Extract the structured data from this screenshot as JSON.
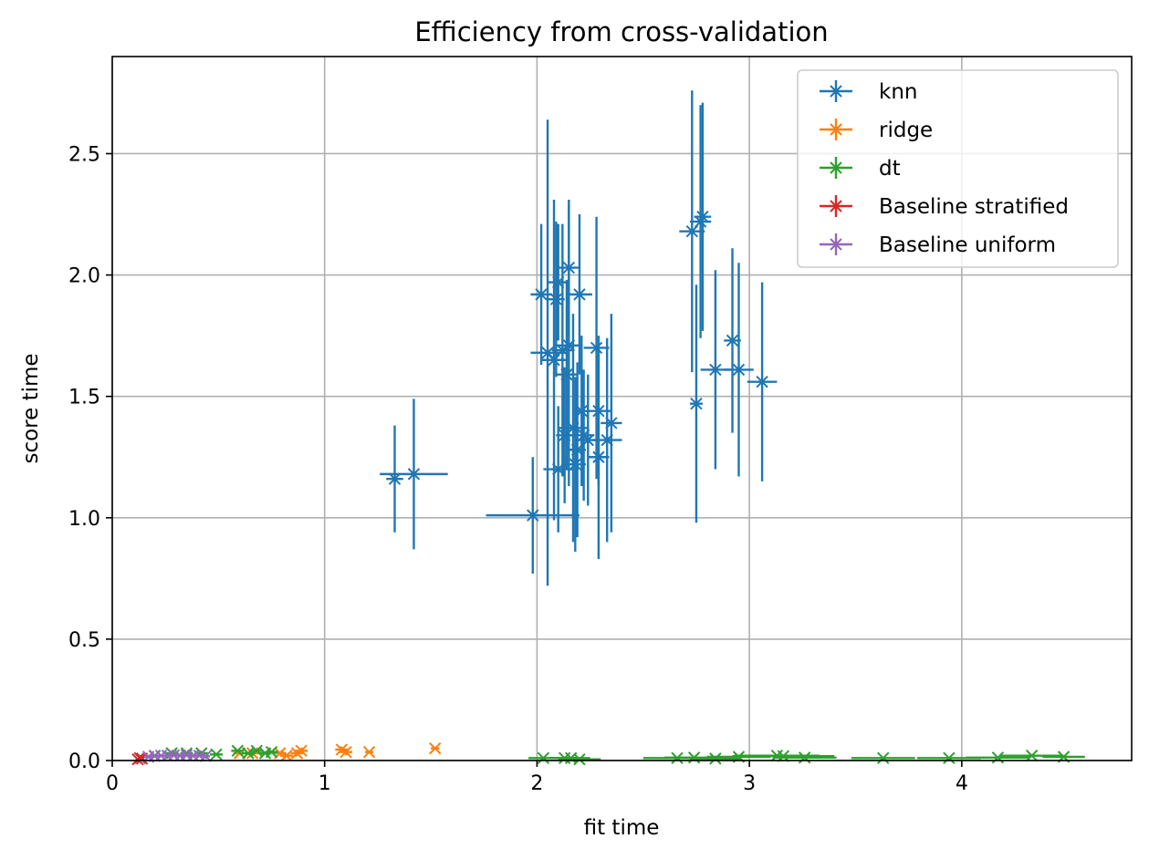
{
  "chart_data": {
    "type": "scatter",
    "title": "Efficiency from cross-validation",
    "xlabel": "fit time",
    "ylabel": "score time",
    "xlim": [
      0,
      4.8
    ],
    "ylim": [
      0,
      2.9
    ],
    "xticks": [
      0,
      1,
      2,
      3,
      4
    ],
    "yticks": [
      0.0,
      0.5,
      1.0,
      1.5,
      2.0,
      2.5
    ],
    "xtick_labels": [
      "0",
      "1",
      "2",
      "3",
      "4"
    ],
    "ytick_labels": [
      "0.0",
      "0.5",
      "1.0",
      "1.5",
      "2.0",
      "2.5"
    ],
    "grid": true,
    "legend_position": "top-right",
    "series": [
      {
        "name": "knn",
        "color": "#1f77b4",
        "marker": "x",
        "points": [
          {
            "x": 1.33,
            "y": 1.16,
            "xerr": 0.04,
            "yerr": 0.22
          },
          {
            "x": 1.42,
            "y": 1.18,
            "xerr": 0.16,
            "yerr": 0.31
          },
          {
            "x": 1.98,
            "y": 1.01,
            "xerr": 0.22,
            "yerr": 0.24
          },
          {
            "x": 2.02,
            "y": 1.92,
            "xerr": 0.05,
            "yerr": 0.29
          },
          {
            "x": 2.05,
            "y": 1.68,
            "xerr": 0.08,
            "yerr": 0.96
          },
          {
            "x": 2.08,
            "y": 1.65,
            "xerr": 0.06,
            "yerr": 0.66
          },
          {
            "x": 2.09,
            "y": 1.9,
            "xerr": 0.04,
            "yerr": 0.32
          },
          {
            "x": 2.1,
            "y": 1.97,
            "xerr": 0.05,
            "yerr": 0.24
          },
          {
            "x": 2.1,
            "y": 1.2,
            "xerr": 0.07,
            "yerr": 0.26
          },
          {
            "x": 2.12,
            "y": 1.69,
            "xerr": 0.05,
            "yerr": 0.52
          },
          {
            "x": 2.13,
            "y": 1.34,
            "xerr": 0.04,
            "yerr": 0.28
          },
          {
            "x": 2.14,
            "y": 1.59,
            "xerr": 0.05,
            "yerr": 0.39
          },
          {
            "x": 2.15,
            "y": 2.03,
            "xerr": 0.05,
            "yerr": 0.28
          },
          {
            "x": 2.15,
            "y": 1.71,
            "xerr": 0.06,
            "yerr": 0.58
          },
          {
            "x": 2.17,
            "y": 1.37,
            "xerr": 0.07,
            "yerr": 0.47
          },
          {
            "x": 2.18,
            "y": 1.22,
            "xerr": 0.05,
            "yerr": 0.36
          },
          {
            "x": 2.19,
            "y": 1.28,
            "xerr": 0.04,
            "yerr": 0.36
          },
          {
            "x": 2.2,
            "y": 1.92,
            "xerr": 0.06,
            "yerr": 0.33
          },
          {
            "x": 2.21,
            "y": 1.44,
            "xerr": 0.04,
            "yerr": 0.31
          },
          {
            "x": 2.22,
            "y": 1.34,
            "xerr": 0.05,
            "yerr": 0.27
          },
          {
            "x": 2.24,
            "y": 1.32,
            "xerr": 0.05,
            "yerr": 0.27
          },
          {
            "x": 2.28,
            "y": 1.7,
            "xerr": 0.06,
            "yerr": 0.54
          },
          {
            "x": 2.29,
            "y": 1.25,
            "xerr": 0.05,
            "yerr": 0.42
          },
          {
            "x": 2.29,
            "y": 1.44,
            "xerr": 0.06,
            "yerr": 0.31
          },
          {
            "x": 2.33,
            "y": 1.32,
            "xerr": 0.07,
            "yerr": 0.42
          },
          {
            "x": 2.35,
            "y": 1.39,
            "xerr": 0.05,
            "yerr": 0.45
          },
          {
            "x": 2.73,
            "y": 2.18,
            "xerr": 0.06,
            "yerr": 0.58
          },
          {
            "x": 2.75,
            "y": 1.47,
            "xerr": 0.03,
            "yerr": 0.49
          },
          {
            "x": 2.77,
            "y": 2.22,
            "xerr": 0.05,
            "yerr": 0.48
          },
          {
            "x": 2.78,
            "y": 2.24,
            "xerr": 0.04,
            "yerr": 0.47
          },
          {
            "x": 2.84,
            "y": 1.61,
            "xerr": 0.07,
            "yerr": 0.41
          },
          {
            "x": 2.92,
            "y": 1.73,
            "xerr": 0.04,
            "yerr": 0.38
          },
          {
            "x": 2.95,
            "y": 1.61,
            "xerr": 0.07,
            "yerr": 0.44
          },
          {
            "x": 3.06,
            "y": 1.56,
            "xerr": 0.07,
            "yerr": 0.41
          }
        ]
      },
      {
        "name": "ridge",
        "color": "#ff7f0e",
        "marker": "x",
        "points": [
          {
            "x": 0.6,
            "y": 0.03,
            "xerr": 0.03,
            "yerr": 0.005
          },
          {
            "x": 0.66,
            "y": 0.03,
            "xerr": 0.03,
            "yerr": 0.005
          },
          {
            "x": 0.79,
            "y": 0.03,
            "xerr": 0.03,
            "yerr": 0.005
          },
          {
            "x": 0.82,
            "y": 0.02,
            "xerr": 0.03,
            "yerr": 0.005
          },
          {
            "x": 0.87,
            "y": 0.03,
            "xerr": 0.03,
            "yerr": 0.005
          },
          {
            "x": 0.89,
            "y": 0.04,
            "xerr": 0.03,
            "yerr": 0.005
          },
          {
            "x": 1.08,
            "y": 0.045,
            "xerr": 0.03,
            "yerr": 0.006
          },
          {
            "x": 1.1,
            "y": 0.035,
            "xerr": 0.03,
            "yerr": 0.006
          },
          {
            "x": 1.21,
            "y": 0.035,
            "xerr": 0.02,
            "yerr": 0.005
          },
          {
            "x": 1.52,
            "y": 0.05,
            "xerr": 0.02,
            "yerr": 0.006
          }
        ]
      },
      {
        "name": "dt",
        "color": "#2ca02c",
        "marker": "x",
        "points": [
          {
            "x": 0.2,
            "y": 0.02,
            "xerr": 0.03,
            "yerr": 0.004
          },
          {
            "x": 0.28,
            "y": 0.03,
            "xerr": 0.03,
            "yerr": 0.004
          },
          {
            "x": 0.35,
            "y": 0.03,
            "xerr": 0.03,
            "yerr": 0.004
          },
          {
            "x": 0.42,
            "y": 0.03,
            "xerr": 0.03,
            "yerr": 0.004
          },
          {
            "x": 0.49,
            "y": 0.025,
            "xerr": 0.03,
            "yerr": 0.004
          },
          {
            "x": 0.59,
            "y": 0.04,
            "xerr": 0.03,
            "yerr": 0.006
          },
          {
            "x": 0.64,
            "y": 0.03,
            "xerr": 0.03,
            "yerr": 0.005
          },
          {
            "x": 0.68,
            "y": 0.04,
            "xerr": 0.03,
            "yerr": 0.005
          },
          {
            "x": 0.72,
            "y": 0.03,
            "xerr": 0.03,
            "yerr": 0.005
          },
          {
            "x": 0.75,
            "y": 0.035,
            "xerr": 0.03,
            "yerr": 0.005
          },
          {
            "x": 2.03,
            "y": 0.01,
            "xerr": 0.07,
            "yerr": 0.004
          },
          {
            "x": 2.13,
            "y": 0.01,
            "xerr": 0.07,
            "yerr": 0.004
          },
          {
            "x": 2.16,
            "y": 0.01,
            "xerr": 0.09,
            "yerr": 0.004
          },
          {
            "x": 2.2,
            "y": 0.005,
            "xerr": 0.1,
            "yerr": 0.004
          },
          {
            "x": 2.66,
            "y": 0.01,
            "xerr": 0.16,
            "yerr": 0.004
          },
          {
            "x": 2.74,
            "y": 0.012,
            "xerr": 0.14,
            "yerr": 0.004
          },
          {
            "x": 2.84,
            "y": 0.008,
            "xerr": 0.12,
            "yerr": 0.004
          },
          {
            "x": 2.95,
            "y": 0.015,
            "xerr": 0.15,
            "yerr": 0.004
          },
          {
            "x": 3.13,
            "y": 0.02,
            "xerr": 0.2,
            "yerr": 0.005
          },
          {
            "x": 3.16,
            "y": 0.018,
            "xerr": 0.24,
            "yerr": 0.005
          },
          {
            "x": 3.26,
            "y": 0.012,
            "xerr": 0.15,
            "yerr": 0.004
          },
          {
            "x": 3.63,
            "y": 0.01,
            "xerr": 0.15,
            "yerr": 0.004
          },
          {
            "x": 3.94,
            "y": 0.01,
            "xerr": 0.15,
            "yerr": 0.004
          },
          {
            "x": 4.17,
            "y": 0.012,
            "xerr": 0.15,
            "yerr": 0.004
          },
          {
            "x": 4.33,
            "y": 0.02,
            "xerr": 0.15,
            "yerr": 0.004
          },
          {
            "x": 4.48,
            "y": 0.015,
            "xerr": 0.1,
            "yerr": 0.004
          }
        ]
      },
      {
        "name": "Baseline stratified",
        "color": "#d62728",
        "marker": "x",
        "points": [
          {
            "x": 0.12,
            "y": 0.005,
            "xerr": 0.01,
            "yerr": 0.002
          },
          {
            "x": 0.13,
            "y": 0.01,
            "xerr": 0.01,
            "yerr": 0.002
          },
          {
            "x": 0.14,
            "y": 0.008,
            "xerr": 0.01,
            "yerr": 0.002
          }
        ]
      },
      {
        "name": "Baseline uniform",
        "color": "#9467bd",
        "marker": "x",
        "points": [
          {
            "x": 0.17,
            "y": 0.015,
            "xerr": 0.02,
            "yerr": 0.003
          },
          {
            "x": 0.2,
            "y": 0.018,
            "xerr": 0.02,
            "yerr": 0.003
          },
          {
            "x": 0.23,
            "y": 0.02,
            "xerr": 0.02,
            "yerr": 0.003
          },
          {
            "x": 0.26,
            "y": 0.02,
            "xerr": 0.02,
            "yerr": 0.003
          },
          {
            "x": 0.29,
            "y": 0.022,
            "xerr": 0.02,
            "yerr": 0.003
          },
          {
            "x": 0.32,
            "y": 0.02,
            "xerr": 0.02,
            "yerr": 0.003
          },
          {
            "x": 0.35,
            "y": 0.022,
            "xerr": 0.02,
            "yerr": 0.003
          },
          {
            "x": 0.38,
            "y": 0.02,
            "xerr": 0.02,
            "yerr": 0.003
          },
          {
            "x": 0.41,
            "y": 0.02,
            "xerr": 0.02,
            "yerr": 0.003
          },
          {
            "x": 0.44,
            "y": 0.018,
            "xerr": 0.02,
            "yerr": 0.003
          }
        ]
      }
    ]
  }
}
